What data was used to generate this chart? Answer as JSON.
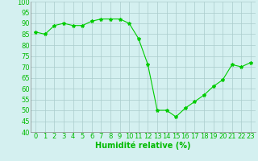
{
  "x": [
    0,
    1,
    2,
    3,
    4,
    5,
    6,
    7,
    8,
    9,
    10,
    11,
    12,
    13,
    14,
    15,
    16,
    17,
    18,
    19,
    20,
    21,
    22,
    23
  ],
  "y": [
    86,
    85,
    89,
    90,
    89,
    89,
    91,
    92,
    92,
    92,
    90,
    83,
    71,
    50,
    50,
    47,
    51,
    54,
    57,
    61,
    64,
    71,
    70,
    72
  ],
  "line_color": "#00cc00",
  "marker": "*",
  "marker_size": 3,
  "background_color": "#d4f0f0",
  "grid_color": "#aacccc",
  "xlabel": "Humidité relative (%)",
  "xlabel_color": "#00bb00",
  "xlabel_fontsize": 7,
  "tick_color": "#00bb00",
  "tick_fontsize": 6,
  "ylim": [
    40,
    100
  ],
  "xlim_min": -0.5,
  "xlim_max": 23.5,
  "yticks": [
    40,
    45,
    50,
    55,
    60,
    65,
    70,
    75,
    80,
    85,
    90,
    95,
    100
  ],
  "xticks": [
    0,
    1,
    2,
    3,
    4,
    5,
    6,
    7,
    8,
    9,
    10,
    11,
    12,
    13,
    14,
    15,
    16,
    17,
    18,
    19,
    20,
    21,
    22,
    23
  ]
}
